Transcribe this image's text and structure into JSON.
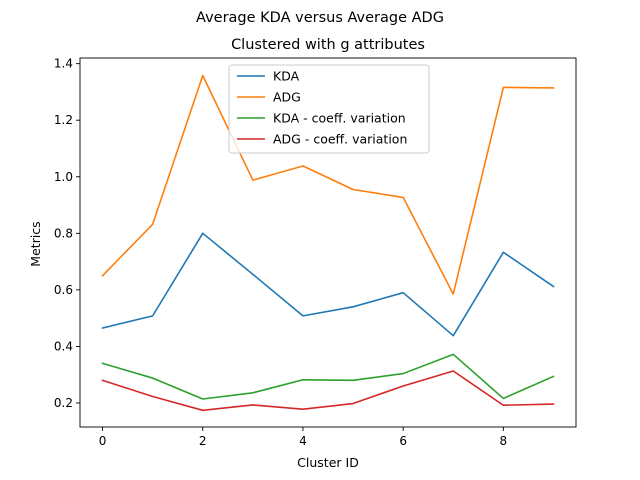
{
  "chart_data": {
    "type": "line",
    "title": "Average KDA versus Average ADG",
    "subtitle": "Clustered with g attributes",
    "xlabel": "Cluster ID",
    "ylabel": "Metrics",
    "xlim": [
      -0.45,
      9.45
    ],
    "ylim": [
      0.115,
      1.42
    ],
    "x_ticks": [
      0,
      2,
      4,
      6,
      8
    ],
    "y_ticks": [
      0.2,
      0.4,
      0.6,
      0.8,
      1.0,
      1.2,
      1.4
    ],
    "y_tick_labels": [
      "0.2",
      "0.4",
      "0.6",
      "0.8",
      "1.0",
      "1.2",
      "1.4"
    ],
    "grid": false,
    "legend_position": "top-center",
    "x": [
      0,
      1,
      2,
      3,
      4,
      5,
      6,
      7,
      8,
      9
    ],
    "series": [
      {
        "name": "KDA",
        "color": "#1f77b4",
        "values": [
          0.465,
          0.508,
          0.8,
          0.655,
          0.508,
          0.54,
          0.59,
          0.438,
          0.733,
          0.612
        ]
      },
      {
        "name": "ADG",
        "color": "#ff7f0e",
        "values": [
          0.65,
          0.832,
          1.358,
          0.988,
          1.038,
          0.955,
          0.927,
          0.585,
          1.316,
          1.314
        ]
      },
      {
        "name": "KDA - coeff. variation",
        "color": "#2ca02c",
        "values": [
          0.34,
          0.288,
          0.214,
          0.236,
          0.282,
          0.28,
          0.304,
          0.372,
          0.216,
          0.294
        ]
      },
      {
        "name": "ADG - coeff. variation",
        "color": "#d62728",
        "values": [
          0.28,
          0.223,
          0.174,
          0.193,
          0.178,
          0.198,
          0.26,
          0.313,
          0.192,
          0.196
        ]
      }
    ]
  }
}
